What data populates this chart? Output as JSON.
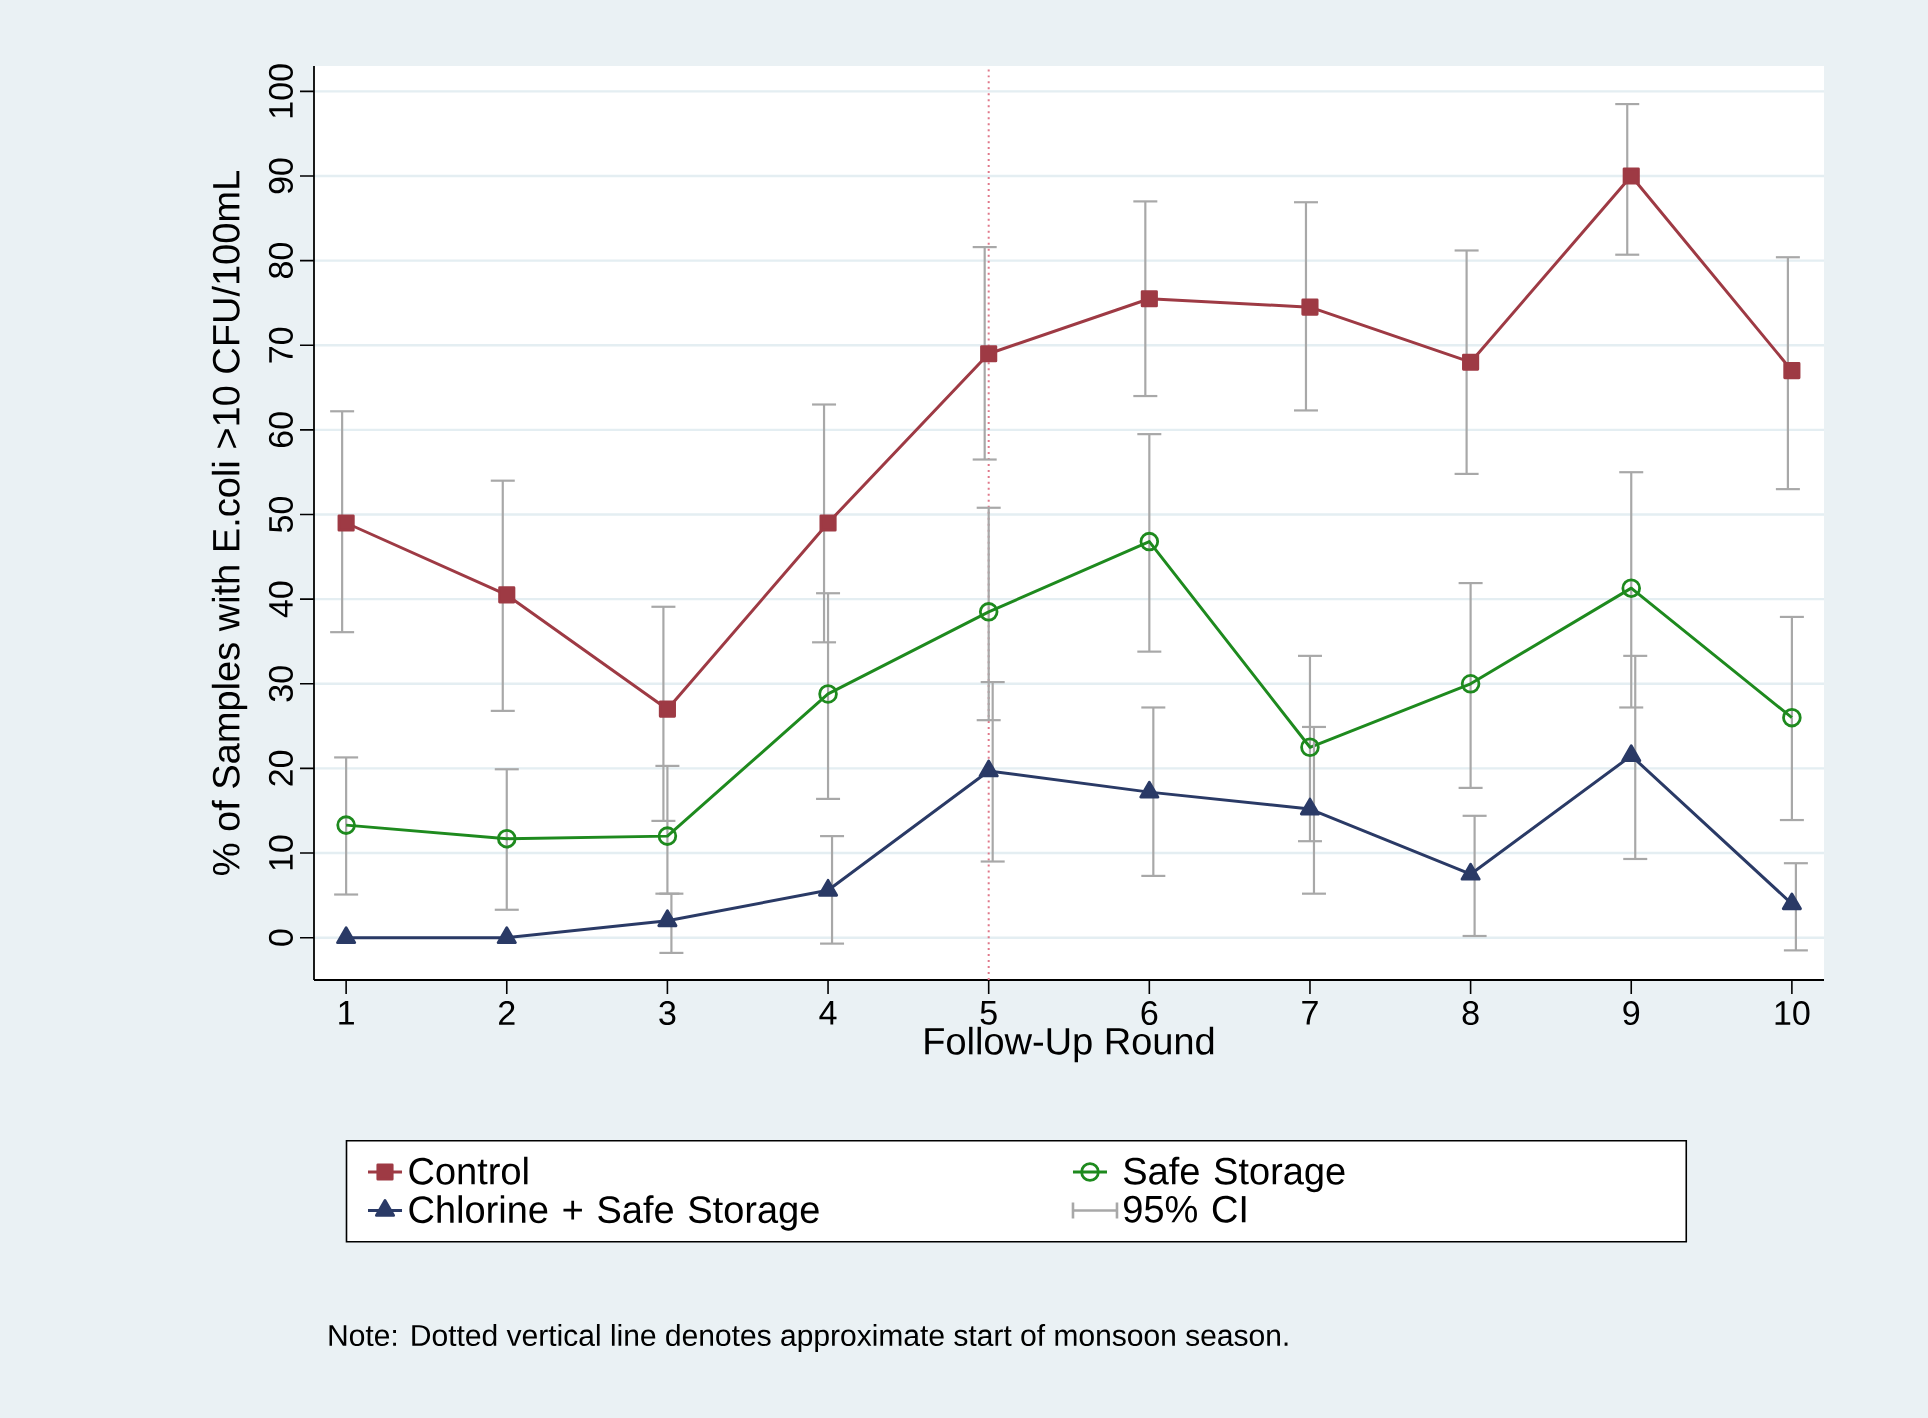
{
  "chart_data": {
    "type": "line",
    "xlabel": "Follow-Up Round",
    "ylabel": "% of Samples with E.coli >10 CFU/100mL",
    "x": [
      1,
      2,
      3,
      4,
      5,
      6,
      7,
      8,
      9,
      10
    ],
    "xlim": [
      0.8,
      10.2
    ],
    "xticks": [
      1,
      2,
      3,
      4,
      5,
      6,
      7,
      8,
      9,
      10
    ],
    "ylim": [
      -5,
      103
    ],
    "yticks": [
      0,
      10,
      20,
      30,
      40,
      50,
      60,
      70,
      80,
      90,
      100
    ],
    "grid": "y",
    "legend": "bottom",
    "line_style": "solid",
    "series": [
      {
        "name": "Control",
        "color": "#9e3a44",
        "marker": "square",
        "values": [
          49,
          40.5,
          27,
          49,
          69,
          75.5,
          74.5,
          68,
          90,
          67
        ],
        "errors": [
          [
            36.1,
            62.2
          ],
          [
            26.8,
            54
          ],
          [
            13.8,
            39.1
          ],
          [
            34.9,
            63
          ],
          [
            56.5,
            81.6
          ],
          [
            64,
            87
          ],
          [
            62.3,
            86.9
          ],
          [
            54.8,
            81.2
          ],
          [
            80.7,
            98.5
          ],
          [
            53,
            80.4
          ]
        ]
      },
      {
        "name": "Safe Storage",
        "color": "#1e8a1e",
        "marker": "circle",
        "values": [
          13.3,
          11.7,
          12,
          28.8,
          38.5,
          46.8,
          22.5,
          30,
          41.3,
          26
        ],
        "errors": [
          [
            5.1,
            21.3
          ],
          [
            3.3,
            19.9
          ],
          [
            5.2,
            20.3
          ],
          [
            16.4,
            40.7
          ],
          [
            25.7,
            50.8
          ],
          [
            33.8,
            59.5
          ],
          [
            11.4,
            33.3
          ],
          [
            17.7,
            41.9
          ],
          [
            27.2,
            55
          ],
          [
            13.9,
            37.9
          ]
        ]
      },
      {
        "name": "Chlorine + Safe Storage",
        "color": "#2a3a66",
        "marker": "triangle",
        "values": [
          0,
          0,
          2,
          5.6,
          19.7,
          17.2,
          15.2,
          7.5,
          21.5,
          4
        ],
        "errors": [
          null,
          null,
          [
            -1.8,
            5.2
          ],
          [
            -0.7,
            12
          ],
          [
            9,
            30.2
          ],
          [
            7.3,
            27.2
          ],
          [
            5.2,
            24.9
          ],
          [
            0.2,
            14.4
          ],
          [
            9.3,
            33.3
          ],
          [
            -1.5,
            8.8
          ]
        ]
      }
    ],
    "ref_lines": [
      {
        "axis": "x",
        "value": 5,
        "color": "#e0788a",
        "line_style": "dotted"
      }
    ],
    "annotations": [
      "95% CI",
      "Note: Dotted vertical line denotes approximate start of monsoon season."
    ]
  }
}
